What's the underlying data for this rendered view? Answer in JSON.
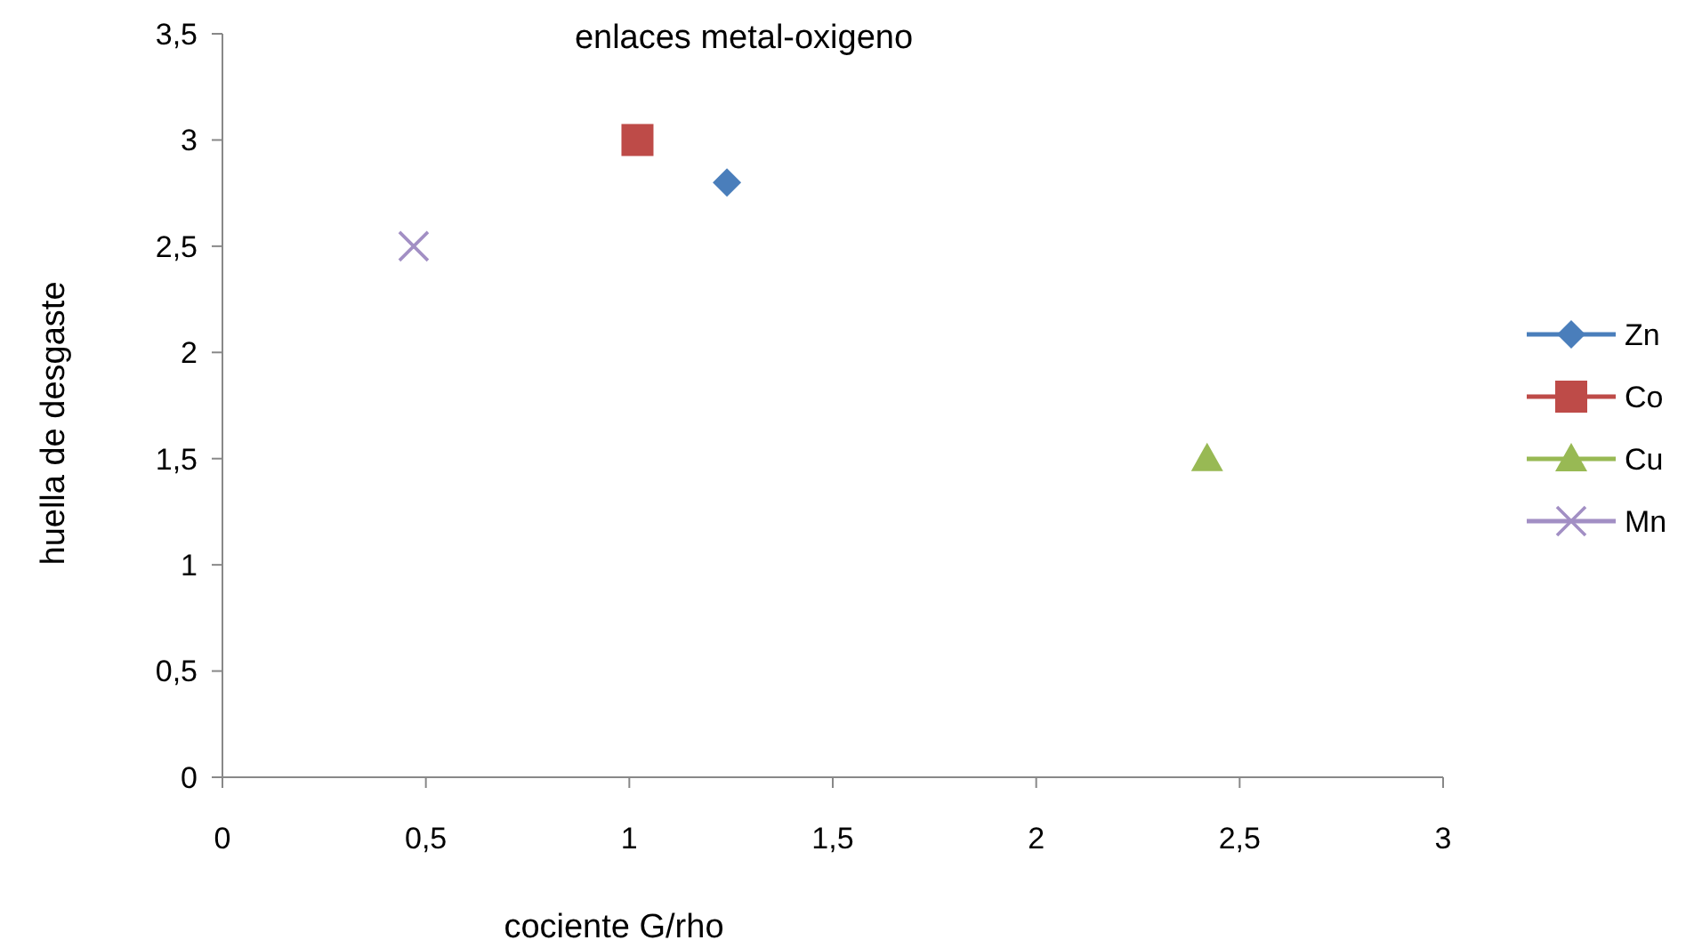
{
  "chart_data": {
    "type": "scatter",
    "title": "enlaces metal-oxigeno",
    "xlabel": "cociente G/rho",
    "ylabel": "huella de desgaste",
    "xlim": [
      0,
      3
    ],
    "xticks": [
      0,
      {
        "value": 0.5,
        "label": "0,5"
      },
      1,
      {
        "value": 1.5,
        "label": "1,5"
      },
      2,
      {
        "value": 2.5,
        "label": "2,5"
      },
      3
    ],
    "ylim": [
      0,
      3.5
    ],
    "yticks": [
      0,
      {
        "value": 0.5,
        "label": "0,5"
      },
      1,
      {
        "value": 1.5,
        "label": "1,5"
      },
      2,
      {
        "value": 2.5,
        "label": "2,5"
      },
      3,
      {
        "value": 3.5,
        "label": "3,5"
      }
    ],
    "grid": false,
    "legend": "right",
    "series": [
      {
        "name": "Zn",
        "color": "#4a7ebb",
        "marker": "diamond",
        "x": [
          1.24
        ],
        "values": [
          2.8
        ]
      },
      {
        "name": "Co",
        "color": "#be4b48",
        "marker": "square",
        "x": [
          1.02
        ],
        "values": [
          3.0
        ]
      },
      {
        "name": "Cu",
        "color": "#98b954",
        "marker": "triangle",
        "x": [
          2.42
        ],
        "values": [
          1.5
        ]
      },
      {
        "name": "Mn",
        "color": "#a28fc4",
        "marker": "cross",
        "x": [
          0.47
        ],
        "values": [
          2.5
        ]
      }
    ]
  }
}
